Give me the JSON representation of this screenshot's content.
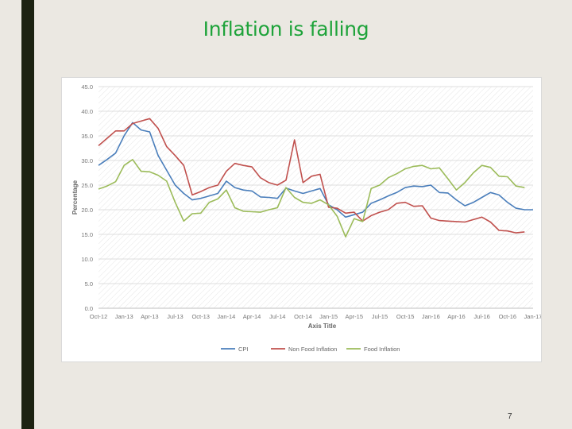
{
  "slide": {
    "title": "Inflation is falling",
    "page_number": "7"
  },
  "chart_data": {
    "type": "line",
    "title": "",
    "xlabel": "Axis Title",
    "ylabel": "Percentage",
    "ylim": [
      0,
      45
    ],
    "yticks": [
      "0.0",
      "5.0",
      "10.0",
      "15.0",
      "20.0",
      "25.0",
      "30.0",
      "35.0",
      "40.0",
      "45.0"
    ],
    "xticks": [
      "Oct-12",
      "Jan-13",
      "Apr-13",
      "Jul-13",
      "Oct-13",
      "Jan-14",
      "Apr-14",
      "Jul-14",
      "Oct-14",
      "Jan-15",
      "Apr-15",
      "Jul-15",
      "Oct-15",
      "Jan-16",
      "Apr-16",
      "Jul-16",
      "Oct-16",
      "Jan-17"
    ],
    "x_start": "2012-10",
    "grid": true,
    "legend": "bottom",
    "series": [
      {
        "name": "CPI",
        "color": "#4a7ebb",
        "values": [
          29.0,
          30.2,
          31.5,
          35.0,
          37.7,
          36.2,
          35.8,
          31.0,
          28.0,
          25.0,
          23.3,
          22.0,
          22.3,
          22.8,
          23.3,
          25.8,
          24.5,
          24.0,
          23.8,
          22.6,
          22.5,
          22.3,
          24.4,
          23.8,
          23.3,
          23.8,
          24.3,
          21.0,
          20.0,
          18.5,
          19.0,
          19.5,
          21.3,
          22.0,
          22.8,
          23.5,
          24.5,
          24.8,
          24.7,
          25.0,
          23.5,
          23.4,
          22.0,
          20.8,
          21.5,
          22.5,
          23.5,
          23.0,
          21.5,
          20.3,
          20.0,
          20.0
        ]
      },
      {
        "name": "Non Food Inflation",
        "color": "#c0504d",
        "values": [
          33.0,
          34.5,
          36.0,
          36.0,
          37.5,
          38.0,
          38.5,
          36.5,
          32.8,
          31.0,
          29.0,
          23.0,
          23.7,
          24.5,
          25.0,
          27.8,
          29.4,
          29.0,
          28.7,
          26.5,
          25.5,
          25.0,
          26.0,
          34.2,
          25.5,
          26.8,
          27.2,
          20.5,
          20.3,
          19.3,
          19.5,
          17.7,
          18.8,
          19.5,
          20.0,
          21.3,
          21.5,
          20.7,
          20.8,
          18.3,
          17.8,
          17.7,
          17.6,
          17.5,
          18.0,
          18.5,
          17.5,
          15.8,
          15.7,
          15.3,
          15.5
        ]
      },
      {
        "name": "Food Inflation",
        "color": "#9bbb59",
        "values": [
          24.2,
          24.8,
          25.7,
          29.0,
          30.2,
          27.8,
          27.7,
          27.0,
          25.8,
          21.5,
          17.7,
          19.2,
          19.3,
          21.5,
          22.2,
          24.0,
          20.4,
          19.7,
          19.6,
          19.5,
          20.0,
          20.4,
          24.5,
          22.5,
          21.5,
          21.3,
          22.0,
          21.0,
          18.7,
          14.5,
          18.2,
          17.6,
          24.3,
          25.0,
          26.5,
          27.3,
          28.3,
          28.8,
          29.0,
          28.3,
          28.5,
          26.3,
          24.0,
          25.5,
          27.5,
          29.0,
          28.6,
          26.8,
          26.7,
          24.8,
          24.5
        ]
      }
    ]
  }
}
